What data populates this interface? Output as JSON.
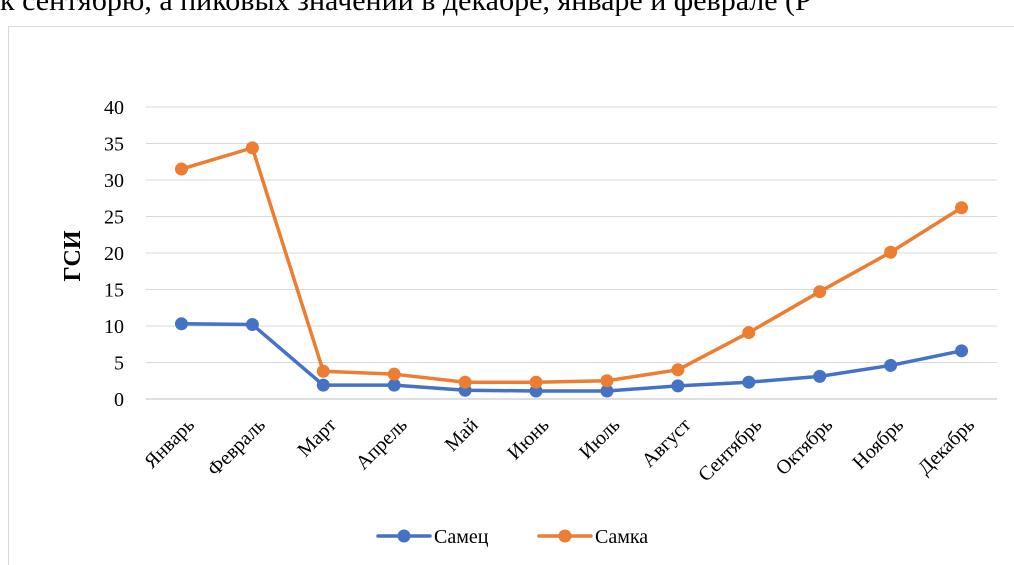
{
  "page": {
    "top_text": "к сентябрю, а пиковых значений в декабре, январе и феврале (Р"
  },
  "chart_data": {
    "type": "line",
    "title": "",
    "xlabel": "",
    "ylabel": "ГСИ",
    "categories": [
      "Январь",
      "Февраль",
      "Март",
      "Апрель",
      "Май",
      "Июнь",
      "Июль",
      "Август",
      "Сентябрь",
      "Октябрь",
      "Ноябрь",
      "Декабрь"
    ],
    "ylim": [
      0,
      40
    ],
    "yticks": [
      0,
      5,
      10,
      15,
      20,
      25,
      30,
      35,
      40
    ],
    "grid": true,
    "legend_position": "bottom",
    "series": [
      {
        "name": "Самец",
        "color": "#4472c4",
        "values": [
          10.3,
          10.2,
          1.9,
          1.9,
          1.2,
          1.1,
          1.1,
          1.8,
          2.3,
          3.1,
          4.6,
          6.6
        ]
      },
      {
        "name": "Самка",
        "color": "#ed7d31",
        "values": [
          31.5,
          34.4,
          3.8,
          3.4,
          2.3,
          2.3,
          2.5,
          4.0,
          9.1,
          14.7,
          20.1,
          26.2
        ]
      }
    ]
  }
}
